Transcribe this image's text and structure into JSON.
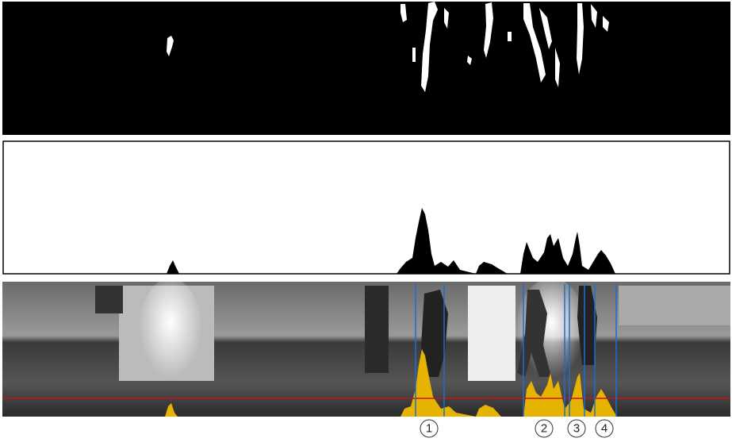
{
  "markers": [
    {
      "label": "1"
    },
    {
      "label": "2"
    },
    {
      "label": "3"
    },
    {
      "label": "4"
    }
  ]
}
